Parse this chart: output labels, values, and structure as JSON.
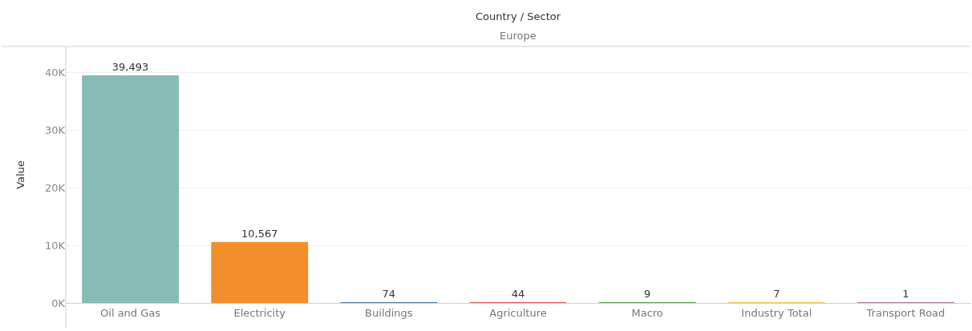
{
  "chart_data": {
    "type": "bar",
    "title": "Country / Sector",
    "subtitle": "Europe",
    "ylabel": "Value",
    "categories": [
      "Oil and Gas",
      "Electricity",
      "Buildings",
      "Agriculture",
      "Macro",
      "Industry Total",
      "Transport Road"
    ],
    "values": [
      39493,
      10567,
      74,
      44,
      9,
      7,
      1
    ],
    "colors": [
      "#86bcb6",
      "#f28e2b",
      "#4e79a7",
      "#e15759",
      "#59a14f",
      "#edc948",
      "#b07aa1"
    ],
    "ylim": [
      0,
      44500
    ],
    "yticks": [
      {
        "value": 0,
        "label": "0K"
      },
      {
        "value": 10000,
        "label": "10K"
      },
      {
        "value": 20000,
        "label": "20K"
      },
      {
        "value": 30000,
        "label": "30K"
      },
      {
        "value": 40000,
        "label": "40K"
      }
    ],
    "value_labels": [
      "39,493",
      "10,567",
      "74",
      "44",
      "9",
      "7",
      "1"
    ],
    "grid": "y"
  }
}
